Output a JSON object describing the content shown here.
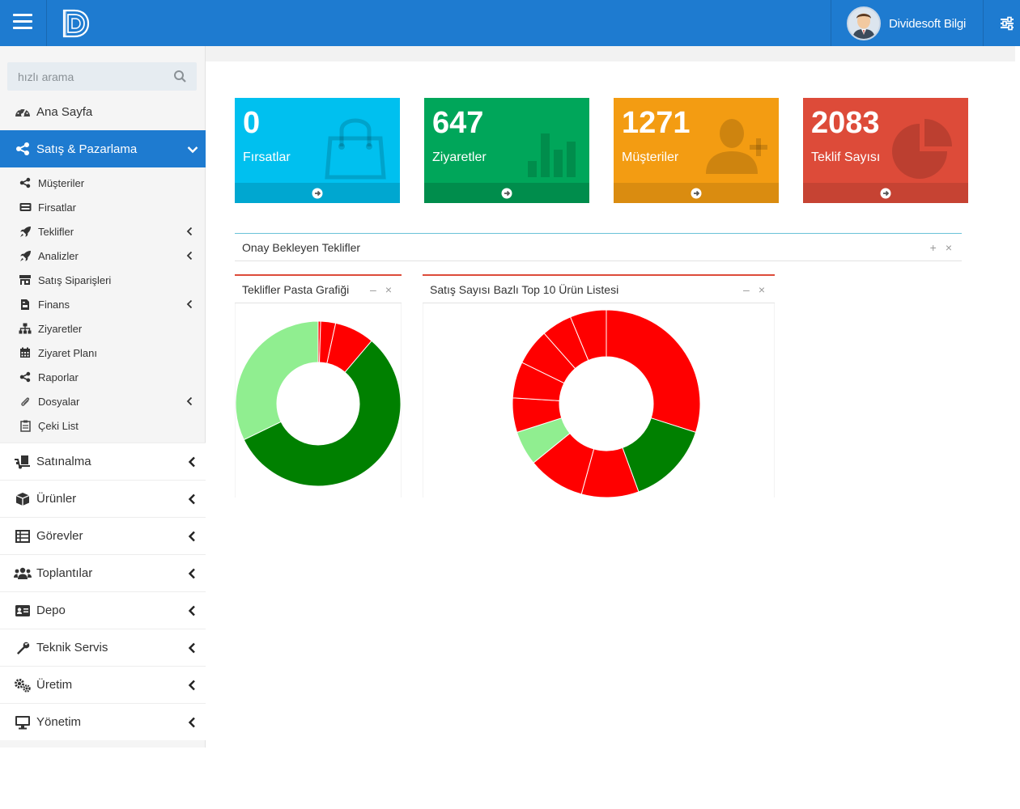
{
  "header": {
    "user_name": "Dividesoft Bilgi",
    "brand_color": "#1e7bd0"
  },
  "sidebar": {
    "search_placeholder": "hızlı arama",
    "home": {
      "label": "Ana Sayfa",
      "icon": "dashboard-icon"
    },
    "active_section": {
      "label": "Satış & Pazarlama",
      "icon": "share-icon"
    },
    "sub_items": [
      {
        "label": "Müşteriler",
        "icon": "share-icon",
        "expandable": false
      },
      {
        "label": "Firsatlar",
        "icon": "keyboard-icon",
        "expandable": false
      },
      {
        "label": "Teklifler",
        "icon": "rocket-icon",
        "expandable": true
      },
      {
        "label": "Analizler",
        "icon": "rocket-icon",
        "expandable": true
      },
      {
        "label": "Satış Siparişleri",
        "icon": "store-icon",
        "expandable": false
      },
      {
        "label": "Finans",
        "icon": "file-invoice-icon",
        "expandable": true
      },
      {
        "label": "Ziyaretler",
        "icon": "sitemap-icon",
        "expandable": false
      },
      {
        "label": "Ziyaret Planı",
        "icon": "calendar-icon",
        "expandable": false
      },
      {
        "label": "Raporlar",
        "icon": "share-icon",
        "expandable": false
      },
      {
        "label": "Dosyalar",
        "icon": "paperclip-icon",
        "expandable": true
      },
      {
        "label": "Çeki List",
        "icon": "clipboard-icon",
        "expandable": false
      }
    ],
    "sections": [
      {
        "label": "Satınalma",
        "icon": "dolly-icon"
      },
      {
        "label": "Ürünler",
        "icon": "cube-icon"
      },
      {
        "label": "Görevler",
        "icon": "table-icon"
      },
      {
        "label": "Toplantılar",
        "icon": "users-icon"
      },
      {
        "label": "Depo",
        "icon": "id-card-icon"
      },
      {
        "label": "Teknik Servis",
        "icon": "wrench-icon"
      },
      {
        "label": "Üretim",
        "icon": "cogs-icon"
      },
      {
        "label": "Yönetim",
        "icon": "desktop-icon"
      }
    ]
  },
  "stats": [
    {
      "value": "0",
      "label": "Fırsatlar",
      "color": "#00c0ef",
      "footer_color": "#00a7d0",
      "icon": "shopping-bag-icon"
    },
    {
      "value": "647",
      "label": "Ziyaretler",
      "color": "#00a65a",
      "footer_color": "#008d4c",
      "icon": "bar-chart-icon"
    },
    {
      "value": "1271",
      "label": "Müşteriler",
      "color": "#f39c12",
      "footer_color": "#da8c10",
      "icon": "user-plus-icon"
    },
    {
      "value": "2083",
      "label": "Teklif Sayısı",
      "color": "#dd4b39",
      "footer_color": "#c64333",
      "icon": "pie-chart-icon"
    }
  ],
  "panels": {
    "pending": {
      "title": "Onay Bekleyen Teklifler",
      "add_label": "+",
      "close_label": "×"
    },
    "pie": {
      "title": "Teklifler Pasta Grafiği",
      "min_label": "–",
      "close_label": "×"
    },
    "top10": {
      "title": "Satış Sayısı Bazlı Top 10 Ürün Listesi",
      "min_label": "–",
      "close_label": "×"
    }
  },
  "chart_data": [
    {
      "type": "pie",
      "title": "Teklifler Pasta Grafiği",
      "variant": "donut",
      "values": [
        1,
        6,
        16,
        116,
        66
      ],
      "colors": [
        "#ff0000",
        "#ff0000",
        "#ff0000",
        "#008000",
        "#90ee90"
      ]
    },
    {
      "type": "pie",
      "title": "Satış Sayısı Bazlı Top 10 Ürün Listesi",
      "variant": "donut",
      "values": [
        91,
        44,
        30,
        30,
        18,
        18,
        19,
        19,
        16,
        19
      ],
      "colors": [
        "#ff0000",
        "#008000",
        "#ff0000",
        "#ff0000",
        "#90ee90",
        "#ff0000",
        "#ff0000",
        "#ff0000",
        "#ff0000",
        "#ff0000"
      ]
    }
  ]
}
